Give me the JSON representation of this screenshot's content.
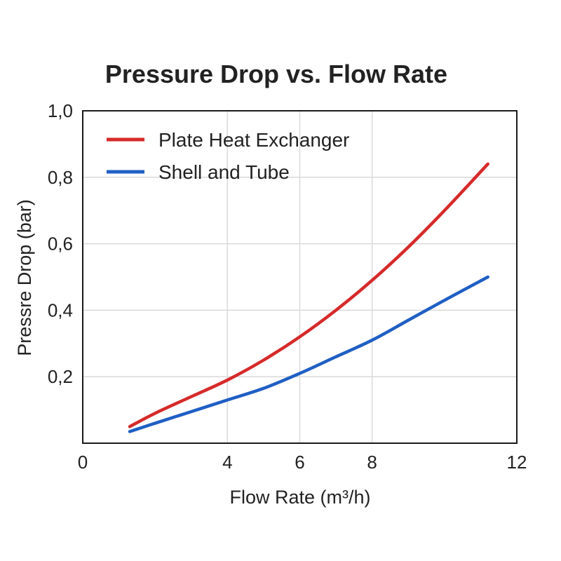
{
  "chart_data": {
    "type": "line",
    "title": "Pressure Drop vs. Flow Rate",
    "xlabel": "Flow Rate (m³/h)",
    "ylabel": "Pressre Drop (bar)",
    "xlim": [
      0,
      12
    ],
    "ylim": [
      0,
      1.0
    ],
    "x_ticks": [
      {
        "value": 0,
        "label": "0"
      },
      {
        "value": 4,
        "label": "4"
      },
      {
        "value": 6,
        "label": "6"
      },
      {
        "value": 8,
        "label": "8"
      },
      {
        "value": 12,
        "label": "12"
      }
    ],
    "y_ticks": [
      {
        "value": 0.2,
        "label": "0,2"
      },
      {
        "value": 0.4,
        "label": "0,4"
      },
      {
        "value": 0.6,
        "label": "0,6"
      },
      {
        "value": 0.8,
        "label": "0,8"
      },
      {
        "value": 1.0,
        "label": "1,0"
      }
    ],
    "x_grid": [
      4,
      6,
      8
    ],
    "y_grid": [
      0.2,
      0.4,
      0.6,
      0.8
    ],
    "grid": true,
    "legend_position": "top-left",
    "series": [
      {
        "name": "Plate Heat Exchanger",
        "color": "#d62a2a",
        "x": [
          1.3,
          2,
          3,
          4,
          5,
          6,
          7,
          8,
          9,
          10,
          11.2
        ],
        "y": [
          0.05,
          0.09,
          0.14,
          0.19,
          0.25,
          0.32,
          0.4,
          0.49,
          0.59,
          0.7,
          0.84
        ]
      },
      {
        "name": "Shell and Tube",
        "color": "#1f5fc4",
        "x": [
          1.3,
          2,
          3,
          4,
          5,
          6,
          7,
          8,
          9,
          10,
          11.2
        ],
        "y": [
          0.035,
          0.06,
          0.095,
          0.13,
          0.165,
          0.21,
          0.26,
          0.31,
          0.37,
          0.43,
          0.5
        ]
      }
    ]
  }
}
